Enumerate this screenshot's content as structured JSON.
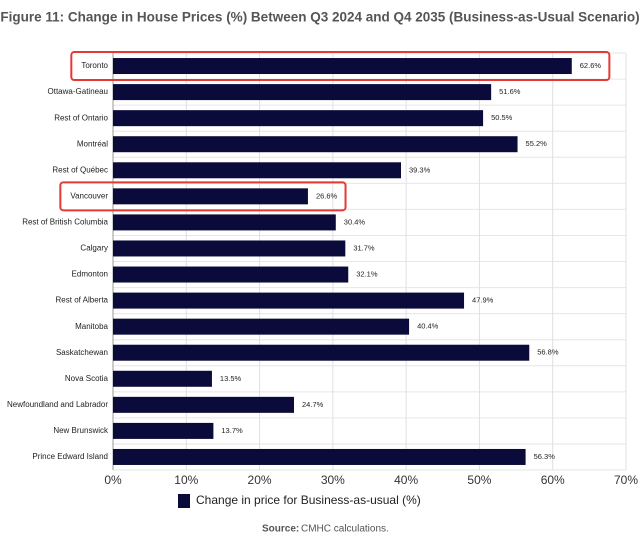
{
  "chart_data": {
    "type": "bar",
    "orientation": "horizontal",
    "title": "Figure 11: Change in House Prices (%) Between Q3 2024 and Q4 2035 (Business-as-Usual Scenario)",
    "categories": [
      "Toronto",
      "Ottawa-Gatineau",
      "Rest of Ontario",
      "Montréal",
      "Rest of Québec",
      "Vancouver",
      "Rest of British Columbia",
      "Calgary",
      "Edmonton",
      "Rest of Alberta",
      "Manitoba",
      "Saskatchewan",
      "Nova Scotia",
      "Newfoundland and Labrador",
      "New Brunswick",
      "Prince Edward Island"
    ],
    "series": [
      {
        "name": "Change in price for Business-as-usual (%)",
        "color": "#0b0b3b",
        "values": [
          62.6,
          51.6,
          50.5,
          55.2,
          39.3,
          26.6,
          30.4,
          31.7,
          32.1,
          47.9,
          40.4,
          56.8,
          13.5,
          24.7,
          13.7,
          56.3
        ],
        "value_labels": [
          "62.6%",
          "51.6%",
          "50.5%",
          "55.2%",
          "39.3%",
          "26.6%",
          "30.4%",
          "31.7%",
          "32.1%",
          "47.9%",
          "40.4%",
          "56.8%",
          "13.5%",
          "24.7%",
          "13.7%",
          "56.3%"
        ]
      }
    ],
    "xlim": [
      0,
      70
    ],
    "xticks": [
      {
        "value": 0,
        "label": "0%"
      },
      {
        "value": 10,
        "label": "10%"
      },
      {
        "value": 20,
        "label": "20%"
      },
      {
        "value": 30,
        "label": "30%"
      },
      {
        "value": 40,
        "label": "40%"
      },
      {
        "value": 50,
        "label": "50%"
      },
      {
        "value": 60,
        "label": "60%"
      },
      {
        "value": 70,
        "label": "70%"
      }
    ],
    "grid": true,
    "legend": "bottom",
    "highlighted": [
      0,
      5
    ],
    "highlight_color": "#e53935",
    "source_label": "Source:",
    "source": "CMHC calculations."
  }
}
